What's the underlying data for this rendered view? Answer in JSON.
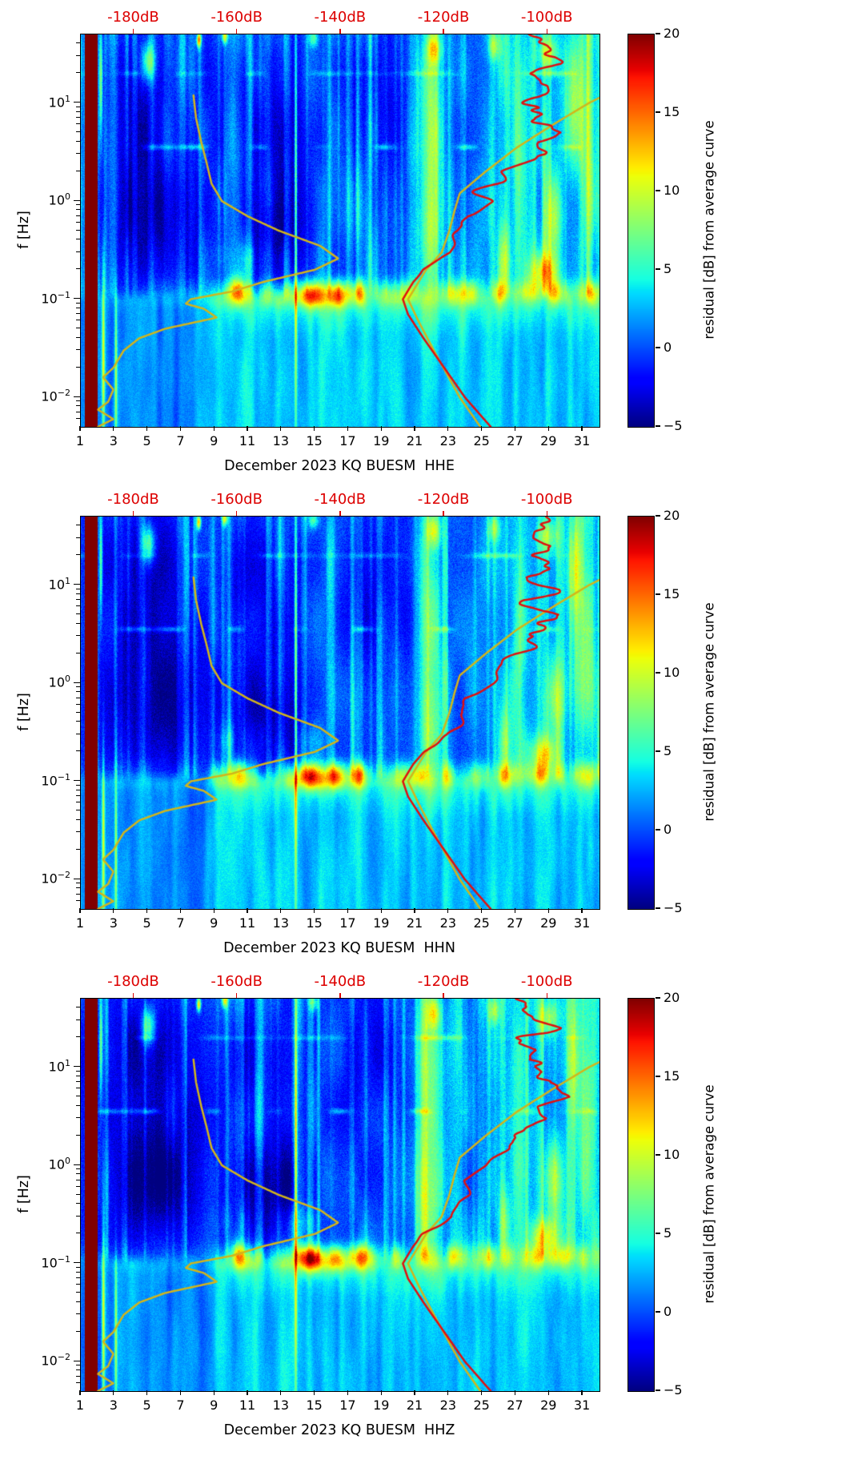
{
  "chart_data": {
    "type": "heatmap",
    "title": "",
    "ylabel": "f [Hz]",
    "x_axis": {
      "range_days": [
        1,
        32
      ],
      "tick_labels": [
        1,
        3,
        5,
        7,
        9,
        11,
        13,
        15,
        17,
        19,
        21,
        23,
        25,
        27,
        29,
        31
      ]
    },
    "y_axis": {
      "scale": "log",
      "range_hz": [
        0.005,
        50
      ],
      "major_tick_exponents": [
        -2,
        -1,
        0,
        1
      ]
    },
    "top_axis": {
      "color": "#dd0000",
      "day_at_0db": 59.8,
      "day_per_db": 0.309,
      "ticks": [
        {
          "db": -180,
          "label": "-180dB"
        },
        {
          "db": -160,
          "label": "-160dB"
        },
        {
          "db": -140,
          "label": "-140dB"
        },
        {
          "db": -120,
          "label": "-120dB"
        },
        {
          "db": -100,
          "label": "-100dB"
        }
      ]
    },
    "colorbar": {
      "label": "residual [dB] from average curve",
      "range": [
        -5,
        20
      ],
      "ticks": [
        20,
        15,
        10,
        5,
        0,
        -5
      ],
      "colormap": "jet"
    },
    "panels": [
      {
        "channel": "HHE",
        "xlabel": "December 2023 KQ BUESM  HHE",
        "seed": 0
      },
      {
        "channel": "HHN",
        "xlabel": "December 2023 KQ BUESM  HHN",
        "seed": 1
      },
      {
        "channel": "HHZ",
        "xlabel": "December 2023 KQ BUESM  HHZ",
        "seed": 2
      }
    ],
    "data_gap_band": {
      "day_start": 1.26,
      "day_end": 2.02,
      "residual_db": 20
    },
    "curves": {
      "low_noise_model": {
        "color": "#d2b51b",
        "points_f_db": [
          [
            0.005,
            -187
          ],
          [
            0.006,
            -184
          ],
          [
            0.0075,
            -187
          ],
          [
            0.009,
            -185
          ],
          [
            0.012,
            -184
          ],
          [
            0.016,
            -186
          ],
          [
            0.02,
            -184
          ],
          [
            0.03,
            -182
          ],
          [
            0.04,
            -179
          ],
          [
            0.05,
            -174
          ],
          [
            0.065,
            -164
          ],
          [
            0.08,
            -166.5
          ],
          [
            0.09,
            -170
          ],
          [
            0.1,
            -169
          ],
          [
            0.12,
            -161
          ],
          [
            0.15,
            -155
          ],
          [
            0.2,
            -145
          ],
          [
            0.26,
            -140.5
          ],
          [
            0.35,
            -144
          ],
          [
            0.5,
            -152
          ],
          [
            0.7,
            -158
          ],
          [
            1.0,
            -163
          ],
          [
            1.5,
            -165
          ],
          [
            2.5,
            -166
          ],
          [
            4,
            -167
          ],
          [
            7,
            -168
          ],
          [
            12,
            -168.5
          ]
        ]
      },
      "high_noise_model": {
        "color": "#d2b51b",
        "points_f_db": [
          [
            0.005,
            -113
          ],
          [
            0.01,
            -117
          ],
          [
            0.03,
            -122
          ],
          [
            0.06,
            -125
          ],
          [
            0.1,
            -127
          ],
          [
            0.2,
            -123.5
          ],
          [
            0.3,
            -120.5
          ],
          [
            0.5,
            -119
          ],
          [
            0.8,
            -118
          ],
          [
            1.2,
            -117
          ],
          [
            2,
            -112
          ],
          [
            3.5,
            -106
          ],
          [
            6,
            -99
          ],
          [
            10,
            -92
          ],
          [
            12,
            -89
          ]
        ]
      },
      "station_average": {
        "color": "#e01010",
        "wiggle_db": 3.5,
        "points_f_db": [
          [
            0.005,
            -111
          ],
          [
            0.01,
            -116
          ],
          [
            0.02,
            -120
          ],
          [
            0.04,
            -124
          ],
          [
            0.07,
            -127
          ],
          [
            0.1,
            -128
          ],
          [
            0.15,
            -126
          ],
          [
            0.2,
            -124
          ],
          [
            0.3,
            -118.5
          ],
          [
            0.5,
            -116.5
          ],
          [
            0.7,
            -117.5
          ],
          [
            1.0,
            -113
          ],
          [
            1.5,
            -110
          ],
          [
            2.0,
            -108
          ],
          [
            3.0,
            -100
          ],
          [
            4.0,
            -103
          ],
          [
            5.0,
            -99
          ],
          [
            7.0,
            -104
          ],
          [
            9.0,
            -100
          ],
          [
            12,
            -104
          ],
          [
            15,
            -101
          ],
          [
            20,
            -104.5
          ],
          [
            25,
            -100.5
          ],
          [
            30,
            -103
          ],
          [
            40,
            -102
          ],
          [
            50,
            -104
          ]
        ]
      }
    },
    "quiet_regions": [
      [
        5.5,
        5.3,
        2.3,
        -0.15,
        0.62
      ],
      [
        4.5,
        12.3,
        1.6,
        -0.35,
        0.45
      ],
      [
        3.8,
        4.6,
        2.5,
        1.28,
        0.5
      ],
      [
        3.0,
        10.8,
        1.15,
        0.95,
        0.55
      ],
      [
        2.6,
        13.4,
        0.85,
        0.75,
        0.8
      ],
      [
        2.8,
        17.8,
        1.1,
        0.95,
        0.75
      ],
      [
        2.0,
        20.0,
        0.8,
        1.1,
        0.6
      ]
    ],
    "hot_features": [
      [
        2.35,
        -1.6,
        9,
        0.06,
        0.7
      ],
      [
        3.1,
        -1.7,
        7,
        0.05,
        0.6
      ],
      [
        13.85,
        -0.1,
        11,
        0.055,
        1.5
      ],
      [
        14.9,
        -0.95,
        13,
        0.5,
        0.09
      ],
      [
        16.2,
        -0.95,
        9,
        0.35,
        0.09
      ],
      [
        17.7,
        -0.93,
        7,
        0.22,
        0.09
      ],
      [
        10.4,
        -0.9,
        5,
        0.3,
        0.1
      ],
      [
        28.7,
        -0.72,
        8,
        0.6,
        0.13
      ],
      [
        21.9,
        0.6,
        6.5,
        0.5,
        1.0
      ],
      [
        21.9,
        -0.45,
        4,
        0.45,
        0.4
      ],
      [
        22.1,
        1.55,
        7,
        0.3,
        0.12
      ],
      [
        5.05,
        1.42,
        9,
        0.3,
        0.14
      ],
      [
        8.05,
        1.64,
        13,
        0.09,
        0.05
      ],
      [
        2.2,
        1.25,
        9,
        0.07,
        0.4
      ],
      [
        9.6,
        1.68,
        10,
        0.12,
        0.05
      ],
      [
        25.7,
        1.58,
        6,
        0.25,
        0.1
      ],
      [
        28.9,
        1.5,
        6,
        0.45,
        0.12
      ],
      [
        14.9,
        1.66,
        6,
        0.2,
        0.06
      ],
      [
        31.3,
        0.5,
        5,
        0.3,
        0.9
      ],
      [
        29.3,
        -0.15,
        6,
        0.35,
        0.3
      ],
      [
        30.5,
        1.0,
        5,
        0.3,
        0.5
      ],
      [
        27.2,
        0.3,
        4,
        0.3,
        0.8
      ],
      [
        26.3,
        -0.6,
        5,
        0.25,
        0.25
      ]
    ]
  }
}
